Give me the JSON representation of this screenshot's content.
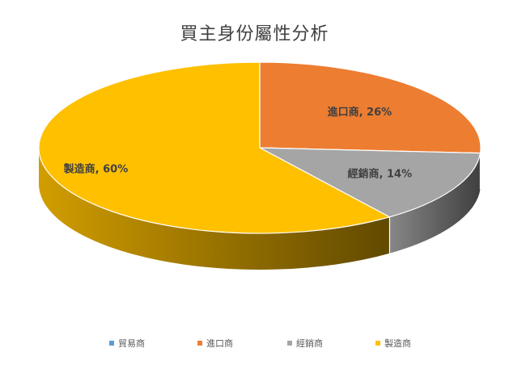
{
  "chart_data": {
    "type": "pie",
    "title": "買主身份屬性分析",
    "categories": [
      "貿易商",
      "進口商",
      "經銷商",
      "製造商"
    ],
    "values": [
      0,
      26,
      14,
      60
    ],
    "value_labels": [
      "",
      "進口商, 26%",
      "經銷商, 14%",
      "製造商, 60%"
    ],
    "colors": [
      "#5b9bd5",
      "#ed7d31",
      "#a5a5a5",
      "#ffc000"
    ],
    "legend_position": "bottom",
    "three_d": true
  }
}
